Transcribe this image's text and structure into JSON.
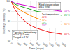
{
  "chart_data": {
    "type": "line",
    "xlabel": "Time (days)",
    "ylabel": "Discharge capacity (%)",
    "x": [
      0,
      50,
      100,
      200,
      300,
      400,
      600,
      800,
      1000,
      1200,
      1400,
      1600
    ],
    "series": [
      {
        "name": "40°C",
        "color": "#ee1111",
        "values": [
          100,
          96,
          93,
          88,
          84,
          81,
          76,
          73,
          71,
          69,
          68,
          67
        ]
      },
      {
        "name": "30°C",
        "color": "#ff8800",
        "values": [
          100,
          97.5,
          96,
          93,
          91,
          89,
          86,
          83,
          81,
          80,
          78,
          77
        ]
      },
      {
        "name": "20°C",
        "color": "#22aa22",
        "values": [
          100,
          98.5,
          97.5,
          96,
          95,
          94,
          92,
          90,
          89,
          88,
          87,
          86
        ]
      },
      {
        "name": "10°C",
        "color": "#cc00cc",
        "values": [
          100,
          99,
          98.5,
          97.5,
          97,
          96.5,
          95,
          93.5,
          92.5,
          91.5,
          90.5,
          90
        ]
      }
    ],
    "xlim": [
      0,
      1600
    ],
    "ylim": [
      60,
      100
    ],
    "xticks": [
      0,
      200,
      400,
      600,
      800,
      1000,
      1200,
      1400,
      1600
    ],
    "yticks": [
      60,
      70,
      80,
      90,
      100
    ],
    "grid": true,
    "annotations": [
      "Rated storage voltage\nat 4.1 V(full)",
      "Capacity = Ambient temp:\nat 25°C (C/5 rate)\nCharged at 4.1V",
      "Test temperatures:"
    ]
  }
}
